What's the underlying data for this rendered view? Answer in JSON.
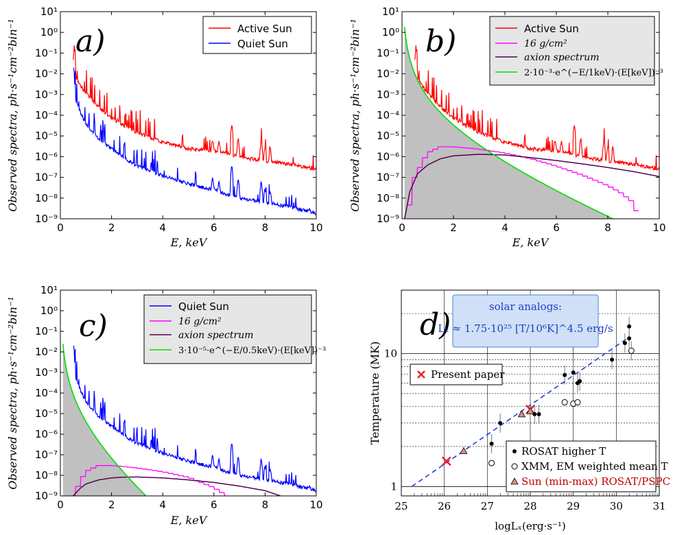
{
  "chart_data": [
    {
      "panel": "a)",
      "type": "line",
      "xlabel": "E, keV",
      "ylabel": "Observed spectra, ph·s⁻¹cm⁻²bin⁻¹",
      "xlim": [
        0,
        10
      ],
      "ylim_log10": [
        -9,
        1
      ],
      "xticks": [
        "0",
        "2",
        "4",
        "6",
        "8",
        "10"
      ],
      "yticks": [
        "10¹",
        "10⁰",
        "10⁻¹",
        "10⁻²",
        "10⁻³",
        "10⁻⁴",
        "10⁻⁵",
        "10⁻⁶",
        "10⁻⁷",
        "10⁻⁸",
        "10⁻⁹"
      ],
      "legend": [
        "Active Sun",
        "Quiet Sun"
      ],
      "series": [
        {
          "name": "Active Sun",
          "color": "#ff0000",
          "x": [
            0.5,
            0.6,
            0.8,
            1.0,
            1.5,
            2.0,
            2.5,
            3.0,
            4.0,
            5.0,
            6.0,
            6.5,
            7.0,
            8.0,
            9.0,
            10.0
          ],
          "y": [
            0.01,
            0.005,
            0.002,
            0.001,
            0.0002,
            6e-05,
            2.5e-05,
            1.2e-05,
            4e-06,
            2e-06,
            1.5e-06,
            1.2e-06,
            8e-07,
            5e-07,
            3.5e-07,
            2e-07
          ]
        },
        {
          "name": "Quiet Sun",
          "color": "#0000ff",
          "x": [
            0.5,
            0.6,
            0.8,
            1.0,
            1.5,
            2.0,
            2.5,
            3.0,
            4.0,
            5.0,
            6.0,
            6.5,
            7.0,
            8.0,
            9.0,
            10.0
          ],
          "y": [
            0.001,
            0.0004,
            0.0001,
            3e-05,
            6e-06,
            2e-06,
            7e-07,
            3e-07,
            1e-07,
            4e-08,
            2e-08,
            1.2e-08,
            8e-09,
            5e-09,
            3e-09,
            1.5e-09
          ]
        }
      ]
    },
    {
      "panel": "b)",
      "type": "line",
      "xlabel": "E, keV",
      "ylabel": "Observed spectra, ph·s⁻¹cm⁻²bin⁻¹",
      "xlim": [
        0,
        10
      ],
      "ylim_log10": [
        -9,
        1
      ],
      "xticks": [
        "0",
        "2",
        "4",
        "6",
        "8",
        "10"
      ],
      "yticks": [
        "10¹",
        "10⁰",
        "10⁻¹",
        "10⁻²",
        "10⁻³",
        "10⁻⁴",
        "10⁻⁵",
        "10⁻⁶",
        "10⁻⁷",
        "10⁻⁸",
        "10⁻⁹"
      ],
      "legend": [
        "Active Sun",
        "16 g/cm²",
        "axion spectrum",
        "2·10⁻³·e^(−E/1keV)·(E[keV])⁻³"
      ],
      "model": {
        "A": 0.002,
        "E0_keV": 1.0,
        "color": "#00dd00",
        "fill": "#c0c0c0"
      },
      "series": [
        {
          "name": "Active Sun",
          "color": "#ff0000",
          "x": [
            0.5,
            0.6,
            0.8,
            1.0,
            1.5,
            2.0,
            2.5,
            3.0,
            4.0,
            5.0,
            6.0,
            6.5,
            7.0,
            8.0,
            9.0,
            10.0
          ],
          "y": [
            0.01,
            0.005,
            0.002,
            0.001,
            0.0002,
            6e-05,
            2.5e-05,
            1.2e-05,
            4e-06,
            2e-06,
            1.5e-06,
            1.2e-06,
            8e-07,
            5e-07,
            3.5e-07,
            2e-07
          ]
        },
        {
          "name": "16 g/cm²",
          "color": "#ff00ff",
          "x": [
            0.2,
            0.5,
            1.0,
            1.5,
            2.0,
            3.0,
            4.0,
            5.0,
            6.0,
            7.0,
            8.0,
            8.5,
            9.0,
            9.2
          ],
          "y": [
            1e-09,
            1e-07,
            1.5e-06,
            3e-06,
            3e-06,
            2.3e-06,
            1.5e-06,
            8e-07,
            3.5e-07,
            1.3e-07,
            4e-08,
            1.8e-08,
            6e-09,
            1e-09
          ]
        },
        {
          "name": "axion spectrum",
          "color": "#55004f",
          "x": [
            0.1,
            0.3,
            0.6,
            1.0,
            1.5,
            2.0,
            3.0,
            4.0,
            5.0,
            6.0,
            7.0,
            8.0,
            9.0,
            10.0
          ],
          "y": [
            1e-09,
            2e-08,
            1.5e-07,
            4e-07,
            8e-07,
            1.1e-06,
            1.3e-06,
            1.2e-06,
            9e-07,
            6.5e-07,
            4.5e-07,
            3e-07,
            1.9e-07,
            1.1e-07
          ]
        }
      ]
    },
    {
      "panel": "c)",
      "type": "line",
      "xlabel": "E, keV",
      "ylabel": "Observed spectra, ph·s⁻¹cm⁻²bin⁻¹",
      "xlim": [
        0,
        10
      ],
      "ylim_log10": [
        -9,
        1
      ],
      "xticks": [
        "0",
        "2",
        "4",
        "6",
        "8",
        "10"
      ],
      "yticks": [
        "10¹",
        "10⁰",
        "10⁻¹",
        "10⁻²",
        "10⁻³",
        "10⁻⁴",
        "10⁻⁵",
        "10⁻⁶",
        "10⁻⁷",
        "10⁻⁸",
        "10⁻⁹"
      ],
      "legend": [
        "Quiet Sun",
        "16 g/cm²",
        "axion spectrum",
        "3·10⁻⁵·e^(−E/0.5keV)·(E[keV])⁻³"
      ],
      "model": {
        "A": 3e-05,
        "E0_keV": 0.5,
        "color": "#00dd00",
        "fill": "#c0c0c0"
      },
      "series": [
        {
          "name": "Quiet Sun",
          "color": "#0000ff",
          "x": [
            0.5,
            0.6,
            0.8,
            1.0,
            1.5,
            2.0,
            2.5,
            3.0,
            4.0,
            5.0,
            6.0,
            6.5,
            7.0,
            8.0,
            9.0,
            10.0
          ],
          "y": [
            0.001,
            0.0004,
            0.0001,
            3e-05,
            6e-06,
            2e-06,
            7e-07,
            3e-07,
            1e-07,
            4e-08,
            2e-08,
            1.2e-08,
            8e-09,
            5e-09,
            3e-09,
            1.5e-09
          ]
        },
        {
          "name": "16 g/cm²",
          "color": "#ff00ff",
          "x": [
            0.5,
            0.8,
            1.0,
            1.5,
            2.0,
            3.0,
            4.0,
            5.0,
            6.0,
            6.5
          ],
          "y": [
            1e-09,
            5e-09,
            1.5e-08,
            3e-08,
            3e-08,
            2.3e-08,
            1.5e-08,
            8e-09,
            2.5e-09,
            1e-09
          ]
        },
        {
          "name": "axion spectrum",
          "color": "#55004f",
          "x": [
            0.5,
            0.8,
            1.0,
            1.5,
            2.0,
            2.5,
            3.0,
            4.0,
            5.0,
            6.0,
            7.0,
            8.0,
            8.6
          ],
          "y": [
            1e-09,
            2.5e-09,
            3.8e-09,
            6e-09,
            7.5e-09,
            8.2e-09,
            8.3e-09,
            7.5e-09,
            6e-09,
            4.5e-09,
            3e-09,
            1.8e-09,
            1e-09
          ]
        }
      ]
    },
    {
      "panel": "d)",
      "type": "scatter",
      "xlabel": "logLₓ(erg·s⁻¹)",
      "ylabel": "Temperature (MK)",
      "xlim": [
        25,
        31
      ],
      "ylim": [
        0.85,
        30
      ],
      "yscale": "log",
      "xticks": [
        "25",
        "26",
        "27",
        "28",
        "29",
        "30",
        "31"
      ],
      "yticks": [
        "1",
        "10"
      ],
      "annotation": {
        "title": "solar analogs:",
        "formula": "Lₓ ≈ 1.75·10²⁵ [T/10⁶K]^4.5 erg/s"
      },
      "legend": [
        "Present paper",
        "ROSAT higher T",
        "XMM, EM weighted mean T",
        "Sun (min-max) ROSAT/PSPC"
      ],
      "fit": {
        "color": "#1f3fdf",
        "from_logT_MK": 0,
        "to_logT_MK": 1.12
      },
      "series": [
        {
          "name": "Present paper",
          "marker": "x",
          "color": "#ee2222",
          "x": [
            26.05,
            28.0
          ],
          "y": [
            1.55,
            3.8
          ]
        },
        {
          "name": "ROSAT higher T",
          "marker": "dot",
          "color": "#000000",
          "x": [
            27.1,
            27.3,
            28.1,
            28.2,
            28.8,
            29.0,
            29.1,
            29.15,
            29.9,
            30.2,
            30.3,
            30.3,
            30.35
          ],
          "y": [
            2.1,
            3.0,
            3.5,
            3.5,
            6.9,
            7.2,
            6.0,
            6.2,
            9.0,
            12.0,
            13.0,
            16.0,
            10.5
          ]
        },
        {
          "name": "XMM, EM weighted mean T",
          "marker": "circle",
          "color": "#000000",
          "x": [
            27.1,
            28.8,
            29.0,
            29.1,
            30.35
          ],
          "y": [
            1.5,
            4.3,
            4.2,
            4.3,
            10.5
          ]
        },
        {
          "name": "Sun (min-max) ROSAT/PSPC",
          "marker": "triangle",
          "color": "#e08a80",
          "x": [
            26.45,
            27.8,
            28.0
          ],
          "y": [
            1.85,
            3.5,
            3.7
          ]
        }
      ]
    }
  ]
}
